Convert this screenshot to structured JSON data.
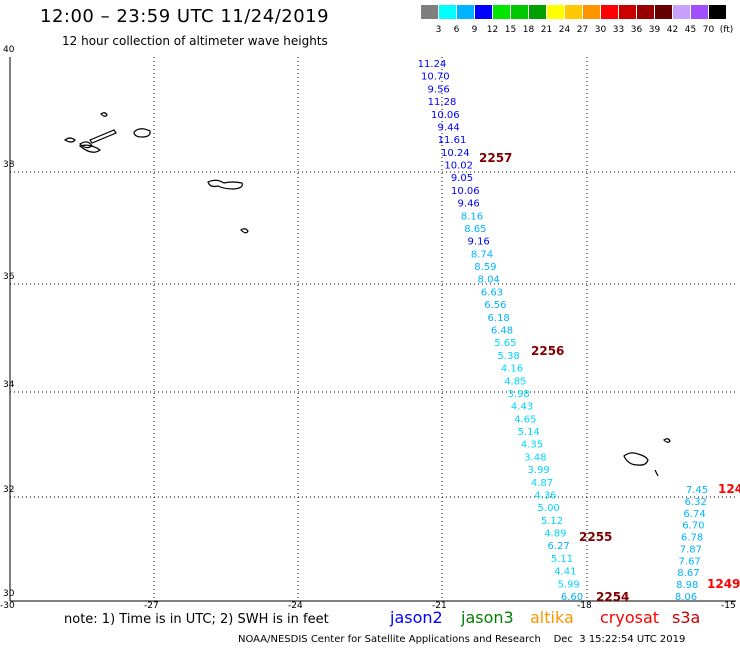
{
  "title": "12:00 – 23:59 UTC 11/24/2019",
  "subtitle": "12 hour collection of altimeter wave heights",
  "colorbar": {
    "labels": [
      "3",
      "6",
      "9",
      "12",
      "15",
      "18",
      "21",
      "24",
      "27",
      "30",
      "33",
      "36",
      "39",
      "42",
      "45",
      "70",
      "(ft)"
    ],
    "colors": [
      "#7f7f7f",
      "#00ffff",
      "#00b4ff",
      "#0000ff",
      "#00e600",
      "#00c800",
      "#00a000",
      "#ffff00",
      "#ffc800",
      "#ff9600",
      "#ff0000",
      "#c80000",
      "#960000",
      "#640000",
      "#c8a0ff",
      "#a050ff",
      "#000000"
    ]
  },
  "axes": {
    "lat_labels": [
      "40",
      "38",
      "36",
      "34",
      "32",
      "30"
    ],
    "lon_labels": [
      "-30",
      "-27",
      "-24",
      "-21",
      "-18",
      "-15"
    ]
  },
  "note": "note: 1) Time is in UTC; 2) SWH is in feet",
  "satellites": [
    {
      "name": "jason2",
      "color": "#0000ff"
    },
    {
      "name": "jason3",
      "color": "#008000"
    },
    {
      "name": "altika",
      "color": "#ff9600"
    },
    {
      "name": "cryosat",
      "color": "#ff0000"
    },
    {
      "name": "s3a",
      "color": "#c80000"
    }
  ],
  "footer": "NOAA/NESDIS Center for Satellite Applications and Research    Dec  3 15:22:54 UTC 2019",
  "track1": {
    "times": [
      "2257",
      "2256",
      "2255",
      "2254"
    ],
    "values": [
      "11.24",
      "10.70",
      "9.56",
      "11.28",
      "10.06",
      "9.44",
      "11.61",
      "10.24",
      "10.02",
      "9.05",
      "10.06",
      "9.46",
      "8.16",
      "8.65",
      "9.16",
      "8.74",
      "8.59",
      "8.04",
      "6.63",
      "6.56",
      "6.18",
      "6.48",
      "5.65",
      "5.38",
      "4.16",
      "4.85",
      "3.98",
      "4.43",
      "4.65",
      "5.14",
      "4.35",
      "3.48",
      "3.99",
      "4.87",
      "4.36",
      "5.00",
      "5.12",
      "4.89",
      "6.27",
      "5.11",
      "4.41",
      "5.99",
      "6.60"
    ]
  },
  "track2": {
    "times": [
      "124",
      "1249"
    ],
    "values": [
      "7.45",
      "6.32",
      "6.74",
      "6.70",
      "6.78",
      "7.87",
      "7.67",
      "8.67",
      "8.98",
      "8.06"
    ]
  }
}
